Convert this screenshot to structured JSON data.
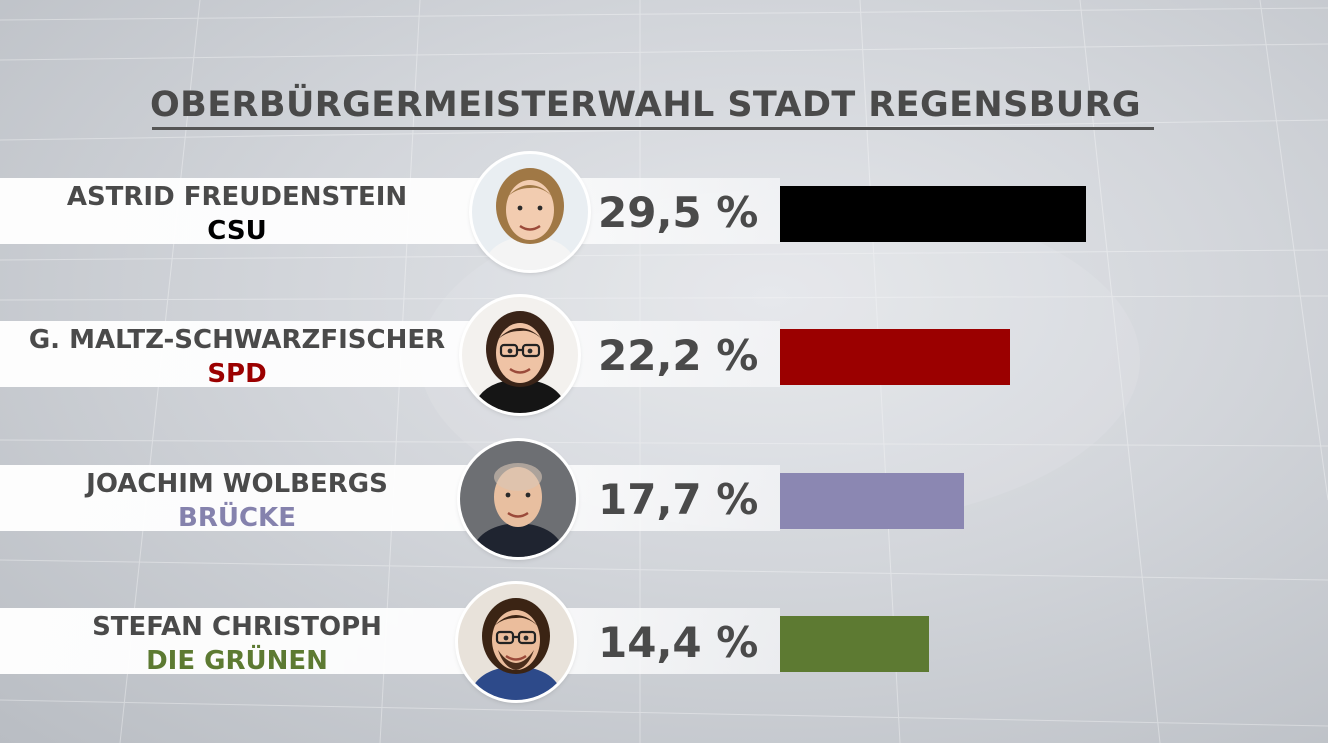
{
  "title": "OBERBÜRGERMEISTERWAHL STADT REGENSBURG",
  "chart_data": {
    "type": "bar",
    "orientation": "horizontal",
    "title": "OBERBÜRGERMEISTERWAHL STADT REGENSBURG",
    "categories": [
      "ASTRID FREUDENSTEIN",
      "G. MALTZ-SCHWARZFISCHER",
      "JOACHIM WOLBERGS",
      "STEFAN CHRISTOPH"
    ],
    "series": [
      {
        "values": [
          29.5,
          22.2,
          17.7,
          14.4
        ]
      }
    ],
    "xlim": [
      0,
      30
    ],
    "grid": false,
    "bars": [
      {
        "name": "ASTRID FREUDENSTEIN",
        "party": "CSU",
        "value": 29.5,
        "label": "29,5 %",
        "color": "#000000",
        "party_color": "#000000",
        "photo_icon": "portrait-woman-blonde"
      },
      {
        "name": "G. MALTZ-SCHWARZFISCHER",
        "party": "SPD",
        "value": 22.2,
        "label": "22,2 %",
        "color": "#9b0000",
        "party_color": "#9b0000",
        "photo_icon": "portrait-woman-glasses"
      },
      {
        "name": "JOACHIM WOLBERGS",
        "party": "BRÜCKE",
        "value": 17.7,
        "label": "17,7 %",
        "color": "#8b87b2",
        "party_color": "#8582ad",
        "photo_icon": "portrait-man-bald"
      },
      {
        "name": "STEFAN CHRISTOPH",
        "party": "DIE GRÜNEN",
        "value": 14.4,
        "label": "14,4 %",
        "color": "#5d7a32",
        "party_color": "#5d7a32",
        "photo_icon": "portrait-man-glasses"
      }
    ]
  }
}
